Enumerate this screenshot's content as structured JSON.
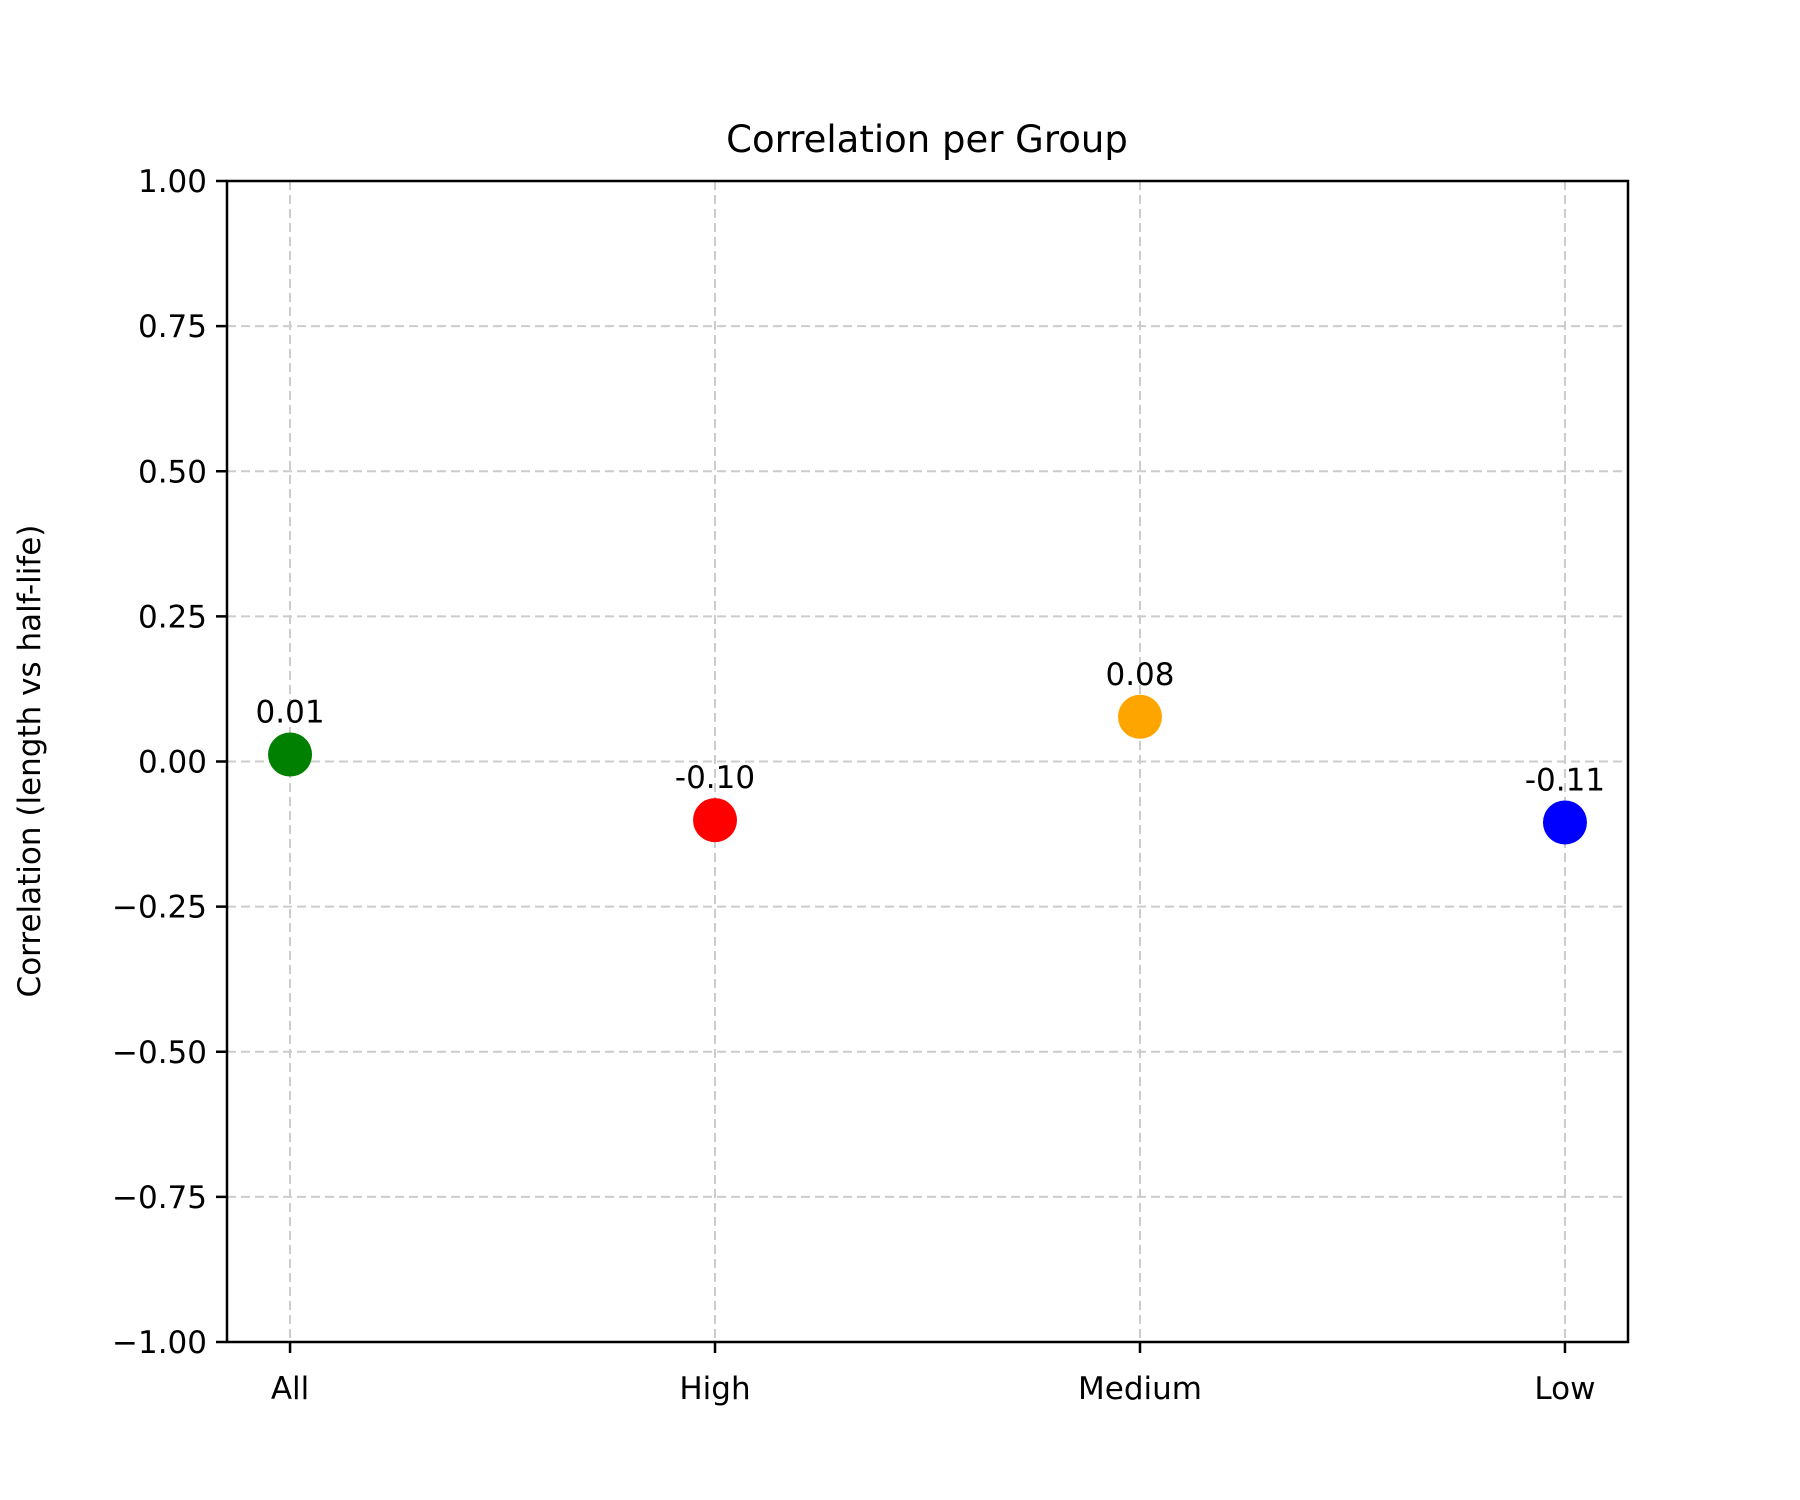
{
  "chart_data": {
    "type": "scatter",
    "title": "Correlation per Group",
    "xlabel": "",
    "ylabel": "Correlation (length vs half-life)",
    "categories": [
      "All",
      "High",
      "Medium",
      "Low"
    ],
    "values": [
      0.012,
      -0.101,
      0.077,
      -0.105
    ],
    "data_labels": [
      "0.01",
      "-0.10",
      "0.08",
      "-0.11"
    ],
    "colors": [
      "#008000",
      "#ff0000",
      "#ffa500",
      "#0000ff"
    ],
    "ylim": [
      -1.0,
      1.0
    ],
    "yticks": [
      1.0,
      0.75,
      0.5,
      0.25,
      0.0,
      -0.25,
      -0.5,
      -0.75,
      -1.0
    ],
    "ytick_labels": [
      "1.00",
      "0.75",
      "0.50",
      "0.25",
      "0.00",
      "−0.25",
      "−0.50",
      "−0.75",
      "−1.00"
    ],
    "grid": true,
    "legend": "none"
  }
}
